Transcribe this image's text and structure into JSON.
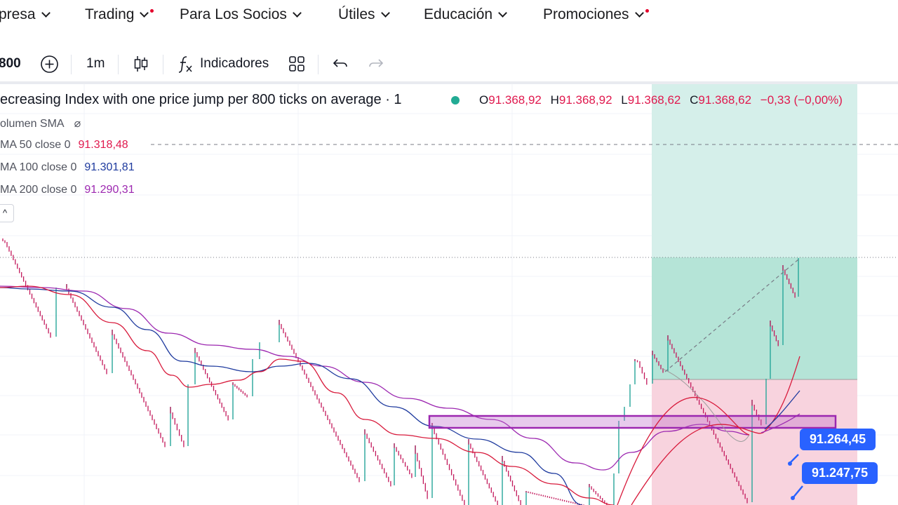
{
  "nav": {
    "items": [
      {
        "label": "presa"
      },
      {
        "label": "Trading"
      },
      {
        "label": "Para Los Socios"
      },
      {
        "label": "Útiles"
      },
      {
        "label": "Educación"
      },
      {
        "label": "Promociones"
      }
    ]
  },
  "toolbar": {
    "symbol": "800",
    "add_icon": "plus-circle-icon",
    "interval": "1m",
    "chart_type_icon": "candles-icon",
    "indicators_icon": "fx-icon",
    "indicators_label": "Indicadores",
    "layouts_icon": "grid-icon",
    "undo_icon": "undo-icon",
    "redo_icon": "redo-icon"
  },
  "legend": {
    "title": "ecreasing Index with one price jump per 800 ticks on average · 1",
    "status_color": "#22ab94",
    "ohlc": {
      "o_key": "O",
      "o": "91.368,92",
      "h_key": "H",
      "h": "91.368,92",
      "l_key": "L",
      "l": "91.368,62",
      "c_key": "C",
      "c": "91.368,62",
      "change": "−0,33 (−0,00%)"
    },
    "indicators": [
      {
        "name": "olumen SMA",
        "value": "⌀",
        "color": "#50535e"
      },
      {
        "name": "MA 50 close 0",
        "value": "91.318,48",
        "color": "#e0194e"
      },
      {
        "name": "MA 100 close 0",
        "value": "91.301,81",
        "color": "#1e3a9e"
      },
      {
        "name": "MA 200 close 0",
        "value": "91.290,31",
        "color": "#9c27b0"
      }
    ],
    "collapse_icon": "chevron-up-icon"
  },
  "price_labels": {
    "upper": "91.264,45",
    "lower": "91.247,75"
  },
  "colors": {
    "ma50": "#d81b3c",
    "ma100": "#1e3a9e",
    "ma200": "#9c27b0",
    "bear": "#c2185b",
    "bull": "#26a69a",
    "target_zone": "#b2dfdb",
    "stop_zone": "#f8bbd0",
    "highlight_box": "#9c27b0",
    "price_tag": "#2962ff"
  }
}
